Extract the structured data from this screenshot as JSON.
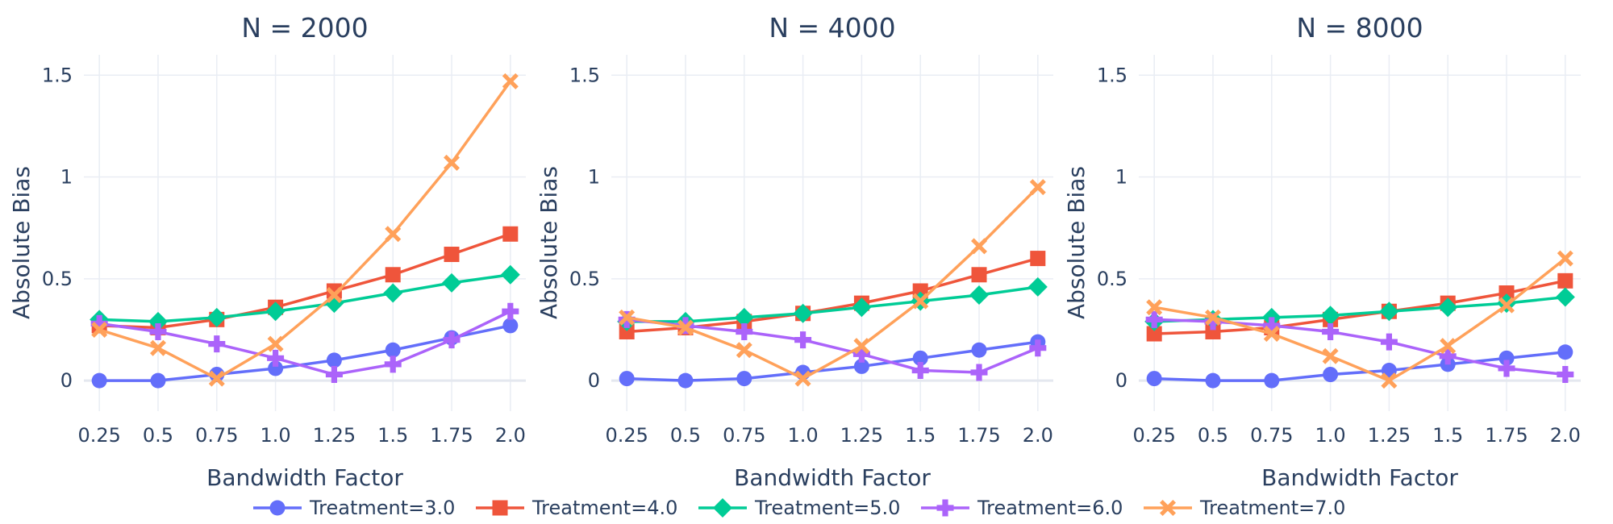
{
  "chart_data": {
    "type": "line",
    "ylabel": "Absolute Bias",
    "xlabel": "Bandwidth Factor",
    "x": [
      0.25,
      0.5,
      0.75,
      1.0,
      1.25,
      1.5,
      1.75,
      2.0
    ],
    "x_tick_labels": [
      "0.25",
      "0.5",
      "0.75",
      "1.0",
      "1.25",
      "1.5",
      "1.75",
      "2.0"
    ],
    "y_ticks": [
      0,
      0.5,
      1,
      1.5
    ],
    "y_tick_labels": [
      "0",
      "0.5",
      "1",
      "1.5"
    ],
    "ylim": [
      -0.15,
      1.6
    ],
    "grid": true,
    "legend_position": "bottom",
    "series_styles": [
      {
        "name": "Treatment=3.0",
        "color": "#636efa",
        "marker": "circle"
      },
      {
        "name": "Treatment=4.0",
        "color": "#ef553b",
        "marker": "square"
      },
      {
        "name": "Treatment=5.0",
        "color": "#00cc96",
        "marker": "diamond"
      },
      {
        "name": "Treatment=6.0",
        "color": "#ab63fa",
        "marker": "cross"
      },
      {
        "name": "Treatment=7.0",
        "color": "#ffa15a",
        "marker": "x"
      }
    ],
    "panels": [
      {
        "title": "N = 2000",
        "series": [
          {
            "name": "Treatment=3.0",
            "values": [
              0.0,
              0.0,
              0.03,
              0.06,
              0.1,
              0.15,
              0.21,
              0.27
            ]
          },
          {
            "name": "Treatment=4.0",
            "values": [
              0.27,
              0.26,
              0.3,
              0.36,
              0.44,
              0.52,
              0.62,
              0.72
            ]
          },
          {
            "name": "Treatment=5.0",
            "values": [
              0.3,
              0.29,
              0.31,
              0.34,
              0.38,
              0.43,
              0.48,
              0.52
            ]
          },
          {
            "name": "Treatment=6.0",
            "values": [
              0.28,
              0.24,
              0.18,
              0.11,
              0.03,
              0.08,
              0.2,
              0.34
            ]
          },
          {
            "name": "Treatment=7.0",
            "values": [
              0.25,
              0.16,
              0.01,
              0.18,
              0.42,
              0.72,
              1.07,
              1.47
            ]
          }
        ]
      },
      {
        "title": "N = 4000",
        "series": [
          {
            "name": "Treatment=3.0",
            "values": [
              0.01,
              0.0,
              0.01,
              0.04,
              0.07,
              0.11,
              0.15,
              0.19
            ]
          },
          {
            "name": "Treatment=4.0",
            "values": [
              0.24,
              0.26,
              0.29,
              0.33,
              0.38,
              0.44,
              0.52,
              0.6
            ]
          },
          {
            "name": "Treatment=5.0",
            "values": [
              0.29,
              0.29,
              0.31,
              0.33,
              0.36,
              0.39,
              0.42,
              0.46
            ]
          },
          {
            "name": "Treatment=6.0",
            "values": [
              0.3,
              0.27,
              0.24,
              0.2,
              0.13,
              0.05,
              0.04,
              0.16
            ]
          },
          {
            "name": "Treatment=7.0",
            "values": [
              0.31,
              0.26,
              0.15,
              0.01,
              0.17,
              0.39,
              0.66,
              0.95
            ]
          }
        ]
      },
      {
        "title": "N = 8000",
        "series": [
          {
            "name": "Treatment=3.0",
            "values": [
              0.01,
              0.0,
              0.0,
              0.03,
              0.05,
              0.08,
              0.11,
              0.14
            ]
          },
          {
            "name": "Treatment=4.0",
            "values": [
              0.23,
              0.24,
              0.26,
              0.3,
              0.34,
              0.38,
              0.43,
              0.49
            ]
          },
          {
            "name": "Treatment=5.0",
            "values": [
              0.29,
              0.3,
              0.31,
              0.32,
              0.34,
              0.36,
              0.38,
              0.41
            ]
          },
          {
            "name": "Treatment=6.0",
            "values": [
              0.3,
              0.29,
              0.27,
              0.24,
              0.19,
              0.12,
              0.06,
              0.03
            ]
          },
          {
            "name": "Treatment=7.0",
            "values": [
              0.36,
              0.31,
              0.23,
              0.12,
              0.0,
              0.17,
              0.37,
              0.6
            ]
          }
        ]
      }
    ]
  }
}
